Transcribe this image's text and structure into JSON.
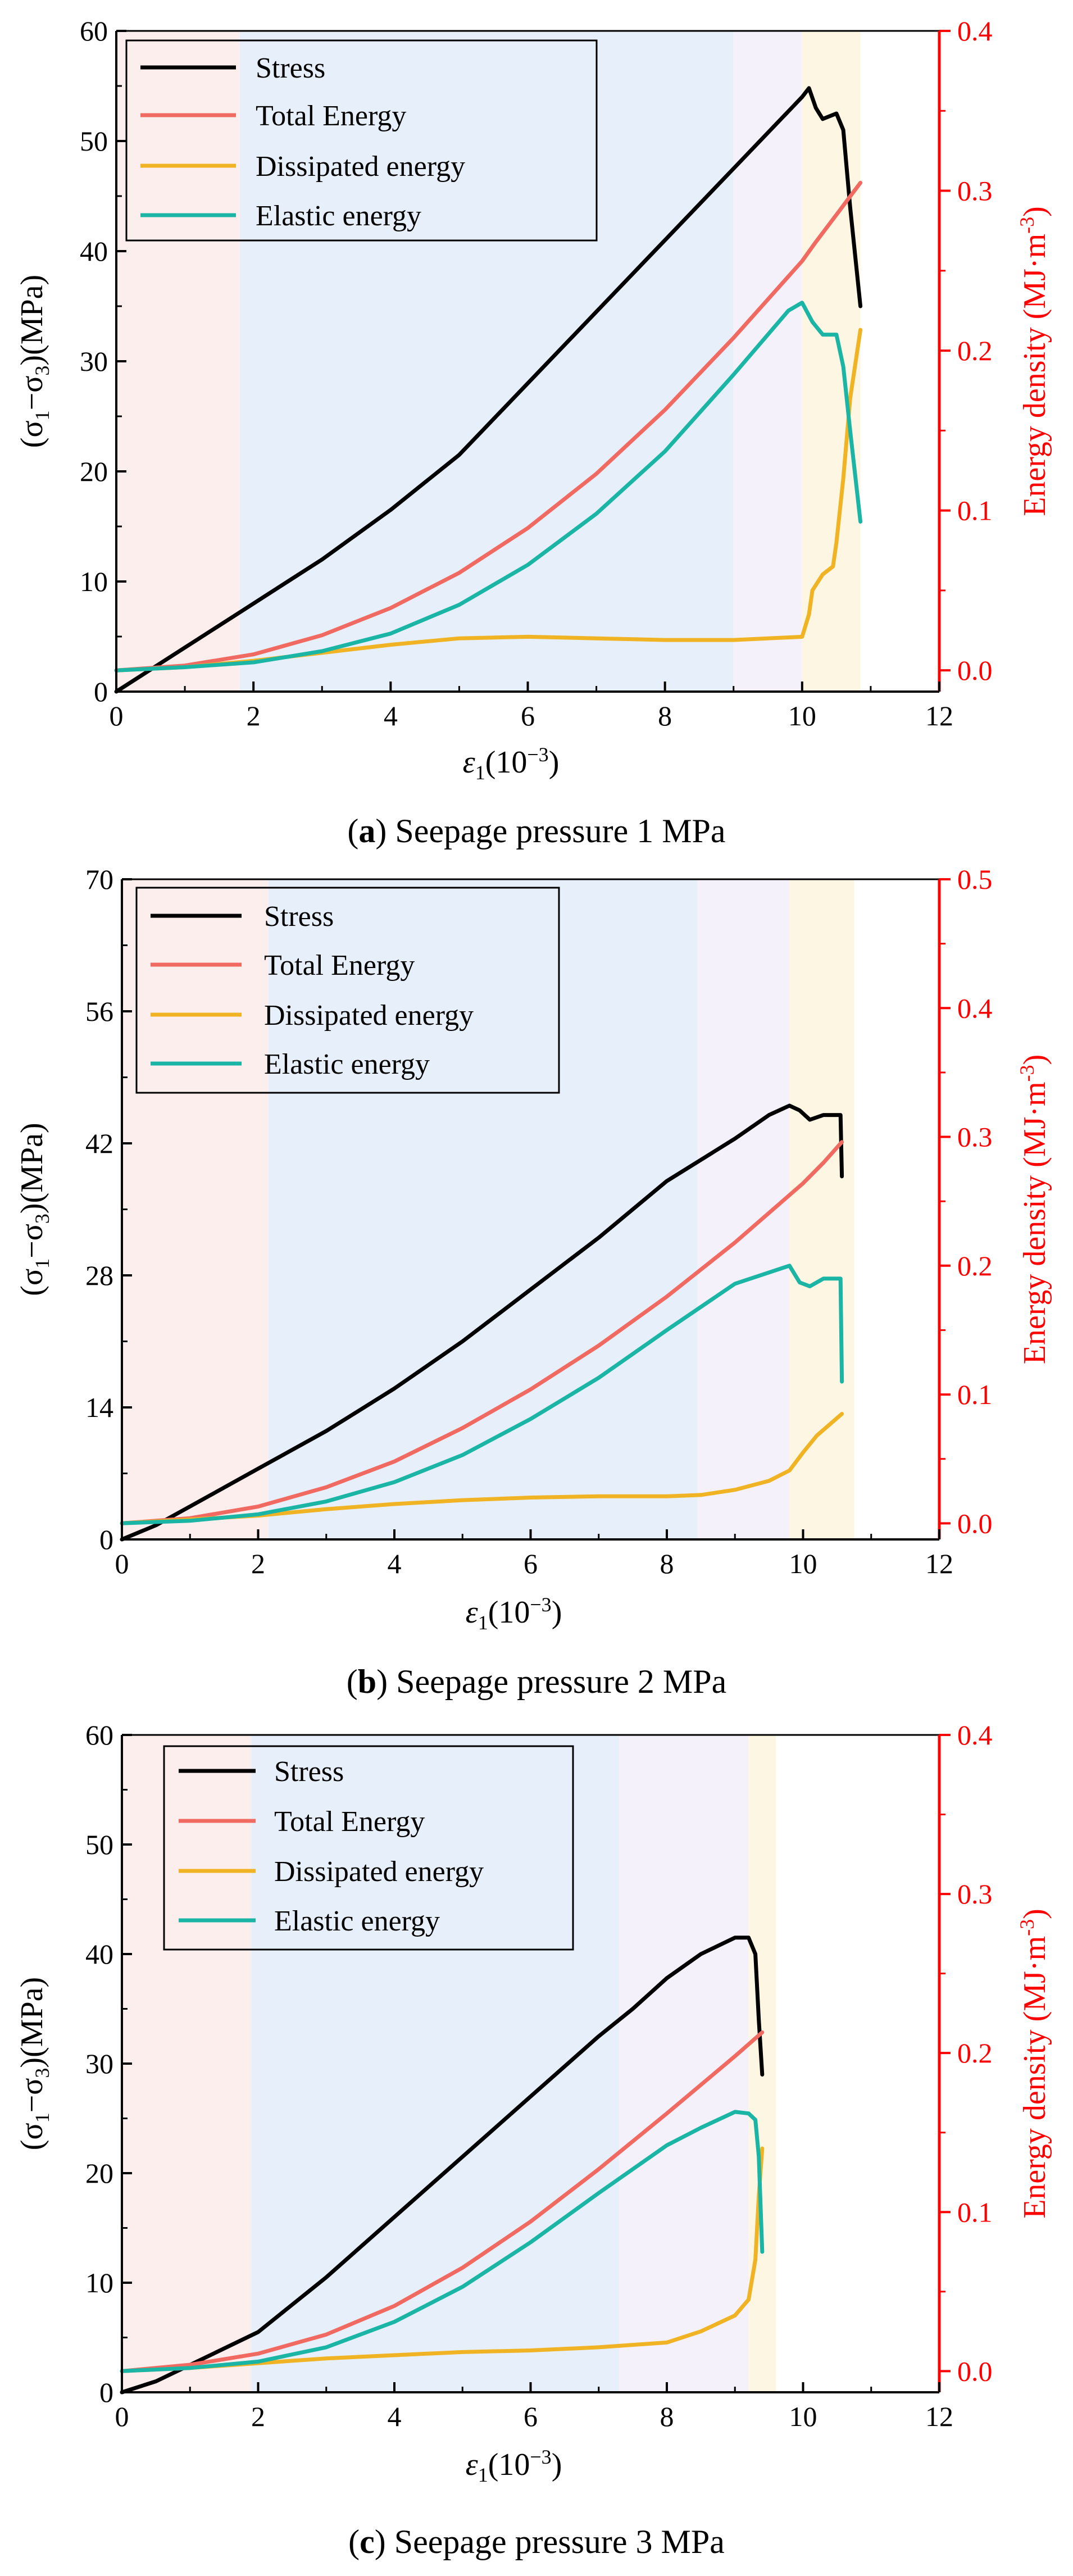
{
  "colors": {
    "stress": "#000000",
    "total_energy": "#f06a62",
    "dissipated_energy": "#f0b323",
    "elastic_energy": "#1ab5a5",
    "right_axis": "#ff0000",
    "stage_1": "#fdeeee",
    "stage_2": "#e7effa",
    "stage_3": "#f5f1fb",
    "stage_4": "#fdf6e3"
  },
  "chart_data": [
    {
      "type": "line",
      "caption": {
        "letter": "a",
        "text": "Seepage pressure 1 MPa"
      },
      "xlabel": "ε1(10−3)",
      "ylabel": "(σ1−σ3)(MPa)",
      "y2label": "Energy density (MJ·m-3)",
      "xlim": [
        0,
        12
      ],
      "ylim": [
        0,
        60
      ],
      "y2lim": [
        -0.0133,
        0.4
      ],
      "xticks": [
        "0",
        "2",
        "4",
        "6",
        "8",
        "10",
        "12"
      ],
      "yticks": [
        "0",
        "10",
        "20",
        "30",
        "40",
        "50",
        "60"
      ],
      "y2ticks": [
        "0.0",
        "0.1",
        "0.2",
        "0.3",
        "0.4"
      ],
      "stages": [
        0,
        1.8,
        9.0,
        10.0,
        10.85
      ],
      "legend": [
        "Stress",
        "Total Energy",
        "Dissipated energy",
        "Elastic energy"
      ],
      "series": [
        {
          "name": "Stress",
          "axis": "left",
          "x": [
            0,
            0.5,
            1,
            1.8,
            2.5,
            3,
            4,
            5,
            6,
            7,
            8,
            9,
            10,
            10.1,
            10.2,
            10.3,
            10.5,
            10.6,
            10.7,
            10.85
          ],
          "values": [
            0,
            2,
            4,
            7.2,
            10,
            12,
            16.5,
            21.5,
            28,
            34.5,
            41,
            47.5,
            54,
            54.8,
            53,
            52,
            52.5,
            51,
            44,
            35
          ]
        },
        {
          "name": "Total Energy",
          "axis": "left_energy",
          "x": [
            0,
            1,
            2,
            3,
            4,
            5,
            6,
            7,
            8,
            9,
            10,
            10.2,
            10.5,
            10.85
          ],
          "values": [
            0,
            0.003,
            0.01,
            0.022,
            0.039,
            0.061,
            0.089,
            0.123,
            0.163,
            0.208,
            0.256,
            0.268,
            0.285,
            0.305
          ]
        },
        {
          "name": "Dissipated energy",
          "axis": "right",
          "x": [
            0,
            1,
            2,
            3,
            4,
            5,
            6,
            7,
            8,
            9,
            10,
            10.1,
            10.15,
            10.3,
            10.45,
            10.5,
            10.6,
            10.7,
            10.85
          ],
          "values": [
            0,
            0.002,
            0.006,
            0.011,
            0.016,
            0.02,
            0.021,
            0.02,
            0.019,
            0.019,
            0.021,
            0.035,
            0.05,
            0.06,
            0.065,
            0.08,
            0.12,
            0.17,
            0.213
          ]
        },
        {
          "name": "Elastic energy",
          "axis": "right",
          "x": [
            0,
            1,
            2,
            3,
            4,
            5,
            6,
            7,
            8,
            9,
            9.8,
            10,
            10.15,
            10.3,
            10.5,
            10.6,
            10.7,
            10.85
          ],
          "values": [
            0,
            0.002,
            0.005,
            0.012,
            0.023,
            0.041,
            0.066,
            0.098,
            0.137,
            0.185,
            0.225,
            0.23,
            0.218,
            0.21,
            0.21,
            0.19,
            0.15,
            0.093
          ]
        }
      ]
    },
    {
      "type": "line",
      "caption": {
        "letter": "b",
        "text": "Seepage pressure 2 MPa"
      },
      "xlabel": "ε1(10−3)",
      "ylabel": "(σ1−σ3)(MPa)",
      "y2label": "Energy density (MJ·m-3)",
      "xlim": [
        0,
        12
      ],
      "ylim": [
        0,
        70
      ],
      "y2lim": [
        -0.0125,
        0.5
      ],
      "xticks": [
        "0",
        "2",
        "4",
        "6",
        "8",
        "10",
        "12"
      ],
      "yticks": [
        "0",
        "14",
        "28",
        "42",
        "56",
        "70"
      ],
      "y2ticks": [
        "0.0",
        "0.1",
        "0.2",
        "0.3",
        "0.4",
        "0.5"
      ],
      "stages": [
        0,
        2.15,
        8.45,
        9.8,
        10.75
      ],
      "legend": [
        "Stress",
        "Total Energy",
        "Dissipated energy",
        "Elastic energy"
      ],
      "series": [
        {
          "name": "Stress",
          "axis": "left",
          "x": [
            0,
            0.5,
            1,
            2,
            3,
            4,
            5,
            6,
            7,
            8,
            9,
            9.5,
            9.8,
            9.95,
            10.1,
            10.3,
            10.55,
            10.57
          ],
          "values": [
            0,
            1.5,
            3.5,
            7.5,
            11.5,
            16,
            21,
            26.5,
            32,
            38,
            42.5,
            45,
            46,
            45.5,
            44.5,
            45,
            45,
            38.5
          ]
        },
        {
          "name": "Total Energy",
          "axis": "right",
          "x": [
            0,
            1,
            2,
            3,
            4,
            5,
            6,
            7,
            8,
            9,
            10,
            10.3,
            10.57
          ],
          "values": [
            0,
            0.004,
            0.013,
            0.028,
            0.048,
            0.074,
            0.104,
            0.138,
            0.176,
            0.218,
            0.264,
            0.28,
            0.296
          ]
        },
        {
          "name": "Dissipated energy",
          "axis": "right",
          "x": [
            0,
            1,
            2,
            3,
            4,
            5,
            6,
            7,
            8,
            8.5,
            9,
            9.5,
            9.8,
            10,
            10.2,
            10.57
          ],
          "values": [
            0,
            0.003,
            0.006,
            0.011,
            0.015,
            0.018,
            0.02,
            0.021,
            0.021,
            0.022,
            0.026,
            0.033,
            0.041,
            0.055,
            0.068,
            0.085
          ]
        },
        {
          "name": "Elastic energy",
          "axis": "right",
          "x": [
            0,
            1,
            2,
            3,
            4,
            5,
            6,
            7,
            8,
            9,
            9.8,
            9.95,
            10.1,
            10.3,
            10.55,
            10.57
          ],
          "values": [
            0,
            0.002,
            0.007,
            0.017,
            0.032,
            0.053,
            0.081,
            0.113,
            0.15,
            0.186,
            0.2,
            0.187,
            0.184,
            0.19,
            0.19,
            0.11
          ]
        }
      ]
    },
    {
      "type": "line",
      "caption": {
        "letter": "c",
        "text": "Seepage pressure 3 MPa"
      },
      "xlabel": "ε1(10−3)",
      "ylabel": "(σ1−σ3)(MPa)",
      "y2label": "Energy density (MJ·m-3)",
      "xlim": [
        0,
        12
      ],
      "ylim": [
        0,
        60
      ],
      "y2lim": [
        -0.0133,
        0.4
      ],
      "xticks": [
        "0",
        "2",
        "4",
        "6",
        "8",
        "10",
        "12"
      ],
      "yticks": [
        "0",
        "10",
        "20",
        "30",
        "40",
        "50",
        "60"
      ],
      "y2ticks": [
        "0.0",
        "0.1",
        "0.2",
        "0.3",
        "0.4"
      ],
      "stages": [
        0,
        1.9,
        7.3,
        9.2,
        9.6
      ],
      "legend": [
        "Stress",
        "Total Energy",
        "Dissipated energy",
        "Elastic energy"
      ],
      "series": [
        {
          "name": "Stress",
          "axis": "left",
          "x": [
            0,
            0.5,
            1,
            2,
            3,
            4,
            5,
            6,
            7,
            7.5,
            8,
            8.5,
            9,
            9.2,
            9.3,
            9.35,
            9.4
          ],
          "values": [
            0,
            1,
            2.5,
            5.5,
            10.5,
            16,
            21.5,
            27,
            32.5,
            35,
            37.8,
            40,
            41.5,
            41.5,
            40,
            34,
            29
          ]
        },
        {
          "name": "Total Energy",
          "axis": "right",
          "x": [
            0,
            1,
            2,
            3,
            4,
            5,
            6,
            7,
            8,
            9,
            9.4
          ],
          "values": [
            0,
            0.004,
            0.011,
            0.023,
            0.041,
            0.065,
            0.094,
            0.127,
            0.162,
            0.198,
            0.213
          ]
        },
        {
          "name": "Dissipated energy",
          "axis": "right",
          "x": [
            0,
            1,
            2,
            3,
            4,
            5,
            6,
            7,
            8,
            8.5,
            9,
            9.2,
            9.3,
            9.35,
            9.4
          ],
          "values": [
            0,
            0.002,
            0.005,
            0.008,
            0.01,
            0.012,
            0.013,
            0.015,
            0.018,
            0.025,
            0.035,
            0.045,
            0.07,
            0.11,
            0.14
          ]
        },
        {
          "name": "Elastic energy",
          "axis": "right",
          "x": [
            0,
            1,
            2,
            3,
            4,
            5,
            6,
            7,
            8,
            8.5,
            9,
            9.2,
            9.3,
            9.35,
            9.4
          ],
          "values": [
            0,
            0.002,
            0.006,
            0.015,
            0.031,
            0.053,
            0.081,
            0.112,
            0.142,
            0.153,
            0.163,
            0.162,
            0.158,
            0.135,
            0.075
          ]
        }
      ]
    }
  ]
}
